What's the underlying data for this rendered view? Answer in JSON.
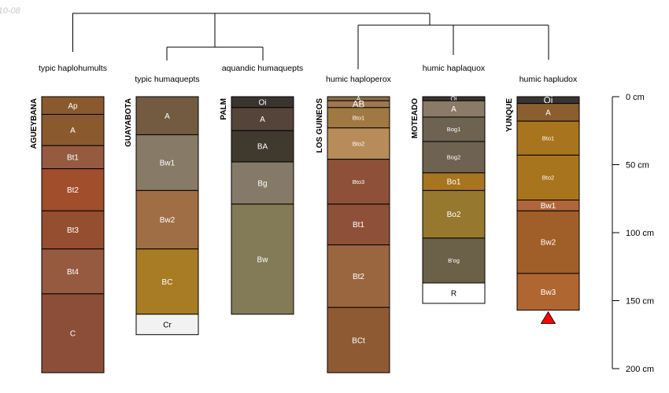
{
  "date_label": "-10-08",
  "chart_data": {
    "type": "soil-profile-sketch",
    "depth_axis": {
      "ticks": [
        0,
        50,
        100,
        150,
        200
      ],
      "tick_labels": [
        "0 cm",
        "50 cm",
        "100 cm",
        "150 cm",
        "200 cm"
      ],
      "range": [
        0,
        200
      ]
    },
    "taxa": [
      "typic haplohumults",
      "typic humaquepts",
      "aquandic humaquepts",
      "humic haploperox",
      "humic haplaquox",
      "humic hapludox"
    ],
    "profiles": [
      {
        "name": "AGUEYBANA",
        "taxon": 0,
        "horizons": [
          {
            "name": "Ap",
            "top": 0,
            "bottom": 13,
            "color": "#8A5A2E"
          },
          {
            "name": "A",
            "top": 13,
            "bottom": 36,
            "color": "#8A5A2E"
          },
          {
            "name": "Bt1",
            "top": 36,
            "bottom": 53,
            "color": "#955A40"
          },
          {
            "name": "Bt2",
            "top": 53,
            "bottom": 84,
            "color": "#A04E2C"
          },
          {
            "name": "Bt3",
            "top": 84,
            "bottom": 112,
            "color": "#954E30"
          },
          {
            "name": "Bt4",
            "top": 112,
            "bottom": 145,
            "color": "#955A40"
          },
          {
            "name": "C",
            "top": 145,
            "bottom": 203,
            "color": "#8C4E38"
          }
        ]
      },
      {
        "name": "GUAYABOTA",
        "taxon": 1,
        "horizons": [
          {
            "name": "A",
            "top": 0,
            "bottom": 28,
            "color": "#725B40"
          },
          {
            "name": "Bw1",
            "top": 28,
            "bottom": 69,
            "color": "#877A66"
          },
          {
            "name": "Bw2",
            "top": 69,
            "bottom": 112,
            "color": "#A06E44"
          },
          {
            "name": "BC",
            "top": 112,
            "bottom": 160,
            "color": "#A87C24"
          },
          {
            "name": "Cr",
            "top": 160,
            "bottom": 175,
            "color": "#F2F2F2"
          }
        ]
      },
      {
        "name": "PALM",
        "taxon": 2,
        "horizons": [
          {
            "name": "Oi",
            "top": 0,
            "bottom": 8,
            "color": "#3A3430"
          },
          {
            "name": "A",
            "top": 8,
            "bottom": 25,
            "color": "#54443A"
          },
          {
            "name": "BA",
            "top": 25,
            "bottom": 48,
            "color": "#403A2E"
          },
          {
            "name": "Bg",
            "top": 48,
            "bottom": 79,
            "color": "#857A68"
          },
          {
            "name": "Bw",
            "top": 79,
            "bottom": 160,
            "color": "#837A58"
          }
        ]
      },
      {
        "name": "LOS GUINEOS",
        "taxon": 3,
        "horizons": [
          {
            "name": "A",
            "top": 0,
            "bottom": 3,
            "color": "#8A6E48"
          },
          {
            "name": "AB",
            "top": 3,
            "bottom": 8,
            "color": "#9E7850"
          },
          {
            "name": "Bto1",
            "top": 8,
            "bottom": 23,
            "color": "#A07842"
          },
          {
            "name": "Bto2",
            "top": 23,
            "bottom": 46,
            "color": "#B88C58"
          },
          {
            "name": "Bto3",
            "top": 46,
            "bottom": 79,
            "color": "#8E5038"
          },
          {
            "name": "Bt1",
            "top": 79,
            "bottom": 109,
            "color": "#8E5038"
          },
          {
            "name": "Bt2",
            "top": 109,
            "bottom": 155,
            "color": "#9A6640"
          },
          {
            "name": "BCt",
            "top": 155,
            "bottom": 203,
            "color": "#8E5A34"
          }
        ]
      },
      {
        "name": "MOTEADO",
        "taxon": 4,
        "horizons": [
          {
            "name": "Oi",
            "top": 0,
            "bottom": 3,
            "color": "#3A3430"
          },
          {
            "name": "A",
            "top": 3,
            "bottom": 15,
            "color": "#8A7A66"
          },
          {
            "name": "Bog1",
            "top": 15,
            "bottom": 33,
            "color": "#6E6250"
          },
          {
            "name": "Bog2",
            "top": 33,
            "bottom": 56,
            "color": "#6E6250"
          },
          {
            "name": "Bo1",
            "top": 56,
            "bottom": 69,
            "color": "#A87420"
          },
          {
            "name": "Bo2",
            "top": 69,
            "bottom": 104,
            "color": "#96782E"
          },
          {
            "name": "B'og",
            "top": 104,
            "bottom": 137,
            "color": "#6B6148"
          },
          {
            "name": "R",
            "top": 137,
            "bottom": 152,
            "color": "#FFFFFF"
          }
        ]
      },
      {
        "name": "YUNQUE",
        "taxon": 5,
        "horizons": [
          {
            "name": "Oi",
            "top": 0,
            "bottom": 5,
            "color": "#3A3430"
          },
          {
            "name": "A",
            "top": 5,
            "bottom": 18,
            "color": "#8A5E2E"
          },
          {
            "name": "Bto1",
            "top": 18,
            "bottom": 43,
            "color": "#A8741E"
          },
          {
            "name": "Bto2",
            "top": 43,
            "bottom": 76,
            "color": "#A8741E"
          },
          {
            "name": "Bw1",
            "top": 76,
            "bottom": 84,
            "color": "#B0663C"
          },
          {
            "name": "Bw2",
            "top": 84,
            "bottom": 130,
            "color": "#A05E28"
          },
          {
            "name": "Bw3",
            "top": 130,
            "bottom": 157,
            "color": "#B06630"
          }
        ],
        "marker": "triangle"
      }
    ],
    "marker_color": "#FF0000"
  }
}
